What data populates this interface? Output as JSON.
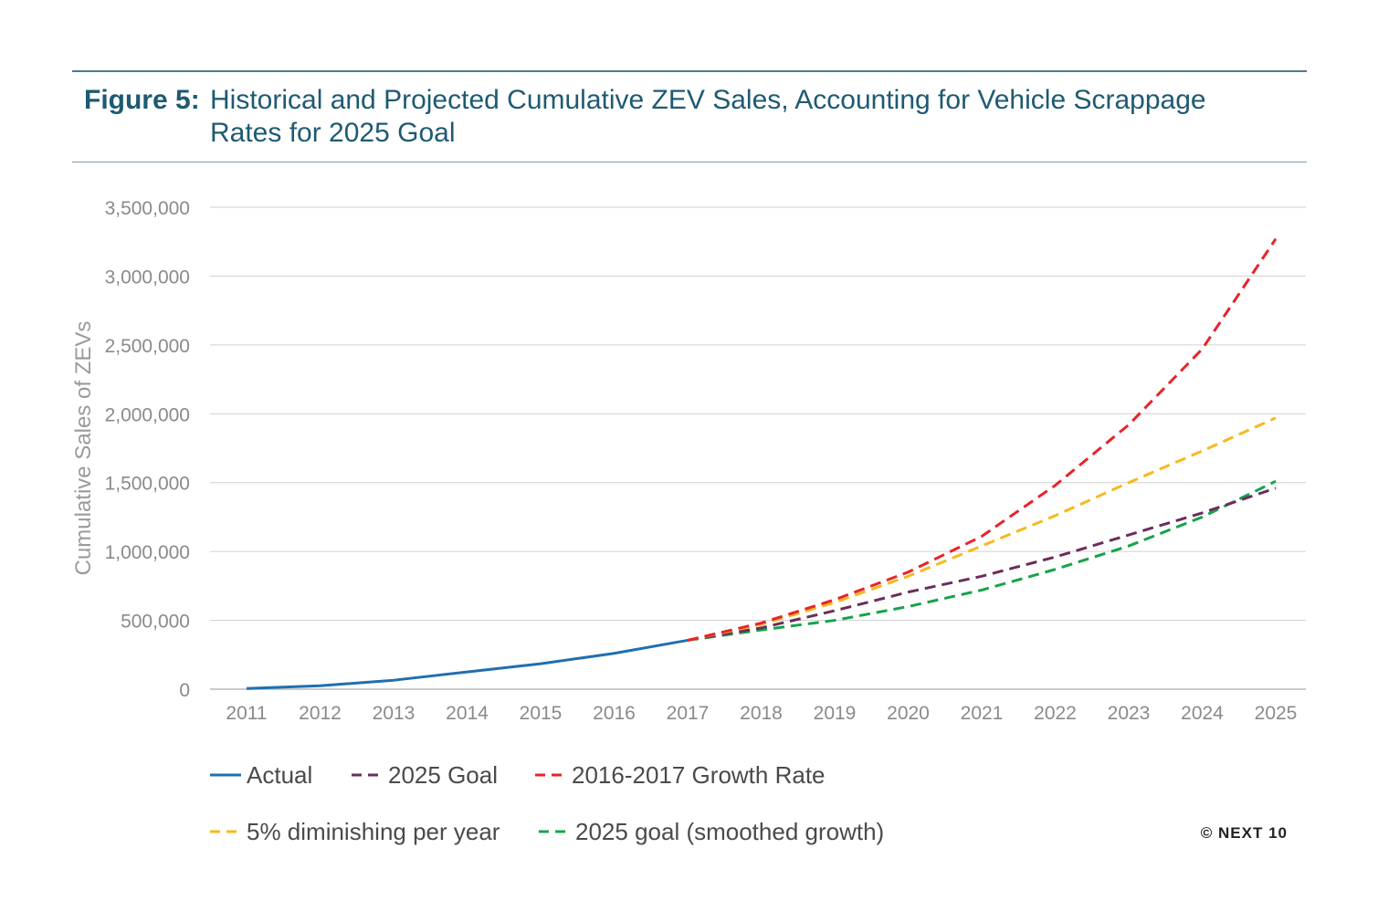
{
  "figure": {
    "label": "Figure 5:",
    "title_line1": "Historical and Projected Cumulative ZEV Sales, Accounting for Vehicle Scrappage",
    "title_line2": "Rates for 2025 Goal"
  },
  "credit": "© NEXT 10",
  "colors": {
    "title": "#1e5a72",
    "actual": "#1f6fb0",
    "goal_2025": "#6b2d5c",
    "growth_rate": "#e8232a",
    "diminishing": "#f7b91c",
    "smoothed": "#16a34a"
  },
  "chart_data": {
    "type": "line",
    "title": "Historical and Projected Cumulative ZEV Sales, Accounting for Vehicle Scrappage Rates for 2025 Goal",
    "xlabel": "",
    "ylabel": "Cumulative Sales of ZEVs",
    "ylim": [
      0,
      3500000
    ],
    "y_ticks": [
      0,
      500000,
      1000000,
      1500000,
      2000000,
      2500000,
      3000000,
      3500000
    ],
    "y_tick_labels": [
      "0",
      "500,000",
      "1,000,000",
      "1,500,000",
      "2,000,000",
      "2,500,000",
      "3,000,000",
      "3,500,000"
    ],
    "categories": [
      "2011",
      "2012",
      "2013",
      "2014",
      "2015",
      "2016",
      "2017",
      "2018",
      "2019",
      "2020",
      "2021",
      "2022",
      "2023",
      "2024",
      "2025"
    ],
    "grid": true,
    "legend_position": "bottom",
    "series": [
      {
        "name": "Actual",
        "style": "solid",
        "color": "#1f6fb0",
        "values": [
          5000,
          25000,
          65000,
          125000,
          185000,
          260000,
          355000,
          null,
          null,
          null,
          null,
          null,
          null,
          null,
          null
        ]
      },
      {
        "name": "2025 Goal",
        "style": "dashed",
        "color": "#6b2d5c",
        "values": [
          null,
          null,
          null,
          null,
          null,
          null,
          355000,
          445000,
          570000,
          705000,
          820000,
          960000,
          1120000,
          1280000,
          1460000
        ]
      },
      {
        "name": "2016-2017 Growth Rate",
        "style": "dashed",
        "color": "#e8232a",
        "values": [
          null,
          null,
          null,
          null,
          null,
          null,
          355000,
          480000,
          650000,
          850000,
          1110000,
          1480000,
          1920000,
          2470000,
          3270000
        ]
      },
      {
        "name": "5% diminishing per year",
        "style": "dashed",
        "color": "#f7b91c",
        "values": [
          null,
          null,
          null,
          null,
          null,
          null,
          355000,
          470000,
          630000,
          820000,
          1040000,
          1260000,
          1500000,
          1730000,
          1970000
        ]
      },
      {
        "name": "2025 goal (smoothed growth)",
        "style": "dashed",
        "color": "#16a34a",
        "values": [
          null,
          null,
          null,
          null,
          null,
          null,
          355000,
          430000,
          500000,
          600000,
          720000,
          870000,
          1040000,
          1250000,
          1510000
        ]
      }
    ]
  }
}
